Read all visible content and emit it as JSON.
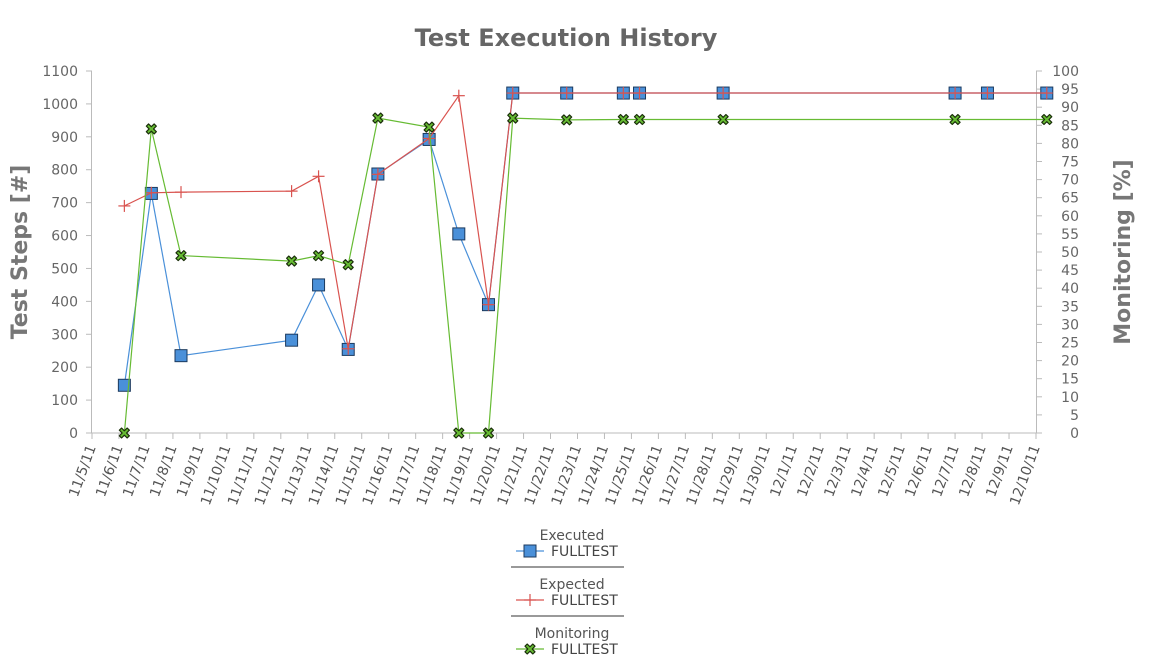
{
  "chart_data": {
    "type": "line",
    "title": "Test Execution History",
    "ylabel": "Test Steps [#]",
    "y2label": "Monitoring [%]",
    "ylim": [
      0,
      1100
    ],
    "y_ticks": [
      0,
      100,
      200,
      300,
      400,
      500,
      600,
      700,
      800,
      900,
      1000,
      1100
    ],
    "y2lim": [
      0,
      100
    ],
    "y2_ticks": [
      0,
      5,
      10,
      15,
      20,
      25,
      30,
      35,
      40,
      45,
      50,
      55,
      60,
      65,
      70,
      75,
      80,
      85,
      90,
      95,
      100
    ],
    "categories": [
      "11/5/11",
      "11/6/11",
      "11/7/11",
      "11/8/11",
      "11/9/11",
      "11/10/11",
      "11/11/11",
      "11/12/11",
      "11/13/11",
      "11/14/11",
      "11/15/11",
      "11/16/11",
      "11/17/11",
      "11/18/11",
      "11/19/11",
      "11/20/11",
      "11/21/11",
      "11/22/11",
      "11/23/11",
      "11/24/11",
      "11/25/11",
      "11/26/11",
      "11/27/11",
      "11/28/11",
      "11/29/11",
      "11/30/11",
      "12/1/11",
      "12/2/11",
      "12/3/11",
      "12/4/11",
      "12/5/11",
      "12/6/11",
      "12/7/11",
      "12/8/11",
      "12/9/11",
      "12/10/11"
    ],
    "grid": false,
    "legend_position": "bottom-center",
    "series": [
      {
        "group": "Executed",
        "name": "FULLTEST",
        "axis": "left",
        "marker": "square",
        "color": "#4a90d9",
        "x": [
          1.2,
          2.2,
          3.3,
          7.4,
          8.4,
          9.5,
          10.6,
          12.5,
          13.6,
          14.7,
          15.6,
          17.6,
          19.7,
          20.3,
          23.4,
          32.0,
          33.2,
          35.4
        ],
        "values": [
          145,
          728,
          235,
          282,
          450,
          254,
          787,
          892,
          605,
          390,
          1033,
          1033,
          1033,
          1033,
          1033,
          1033,
          1033,
          1033
        ]
      },
      {
        "group": "Expected",
        "name": "FULLTEST",
        "axis": "left",
        "marker": "plus",
        "color": "#d9534f",
        "x": [
          1.2,
          2.2,
          3.3,
          7.4,
          8.4,
          9.5,
          10.6,
          12.5,
          13.6,
          14.7,
          15.6,
          17.6,
          19.7,
          20.3,
          23.4,
          32.0,
          33.2,
          35.4
        ],
        "values": [
          690,
          730,
          732,
          735,
          780,
          256,
          786,
          895,
          1025,
          390,
          1033,
          1033,
          1033,
          1033,
          1033,
          1033,
          1033,
          1033
        ]
      },
      {
        "group": "Monitoring",
        "name": "FULLTEST",
        "axis": "right",
        "marker": "x-circle",
        "color": "#66bb33",
        "x": [
          1.2,
          2.2,
          3.3,
          7.4,
          8.4,
          9.5,
          10.6,
          12.5,
          13.6,
          14.7,
          15.6,
          17.6,
          19.7,
          20.3,
          23.4,
          32.0,
          35.4
        ],
        "values": [
          0,
          84,
          49,
          47.5,
          49,
          46.5,
          87,
          84.5,
          0,
          0,
          87,
          86.5,
          86.6,
          86.6,
          86.6,
          86.6,
          86.6
        ]
      }
    ]
  }
}
